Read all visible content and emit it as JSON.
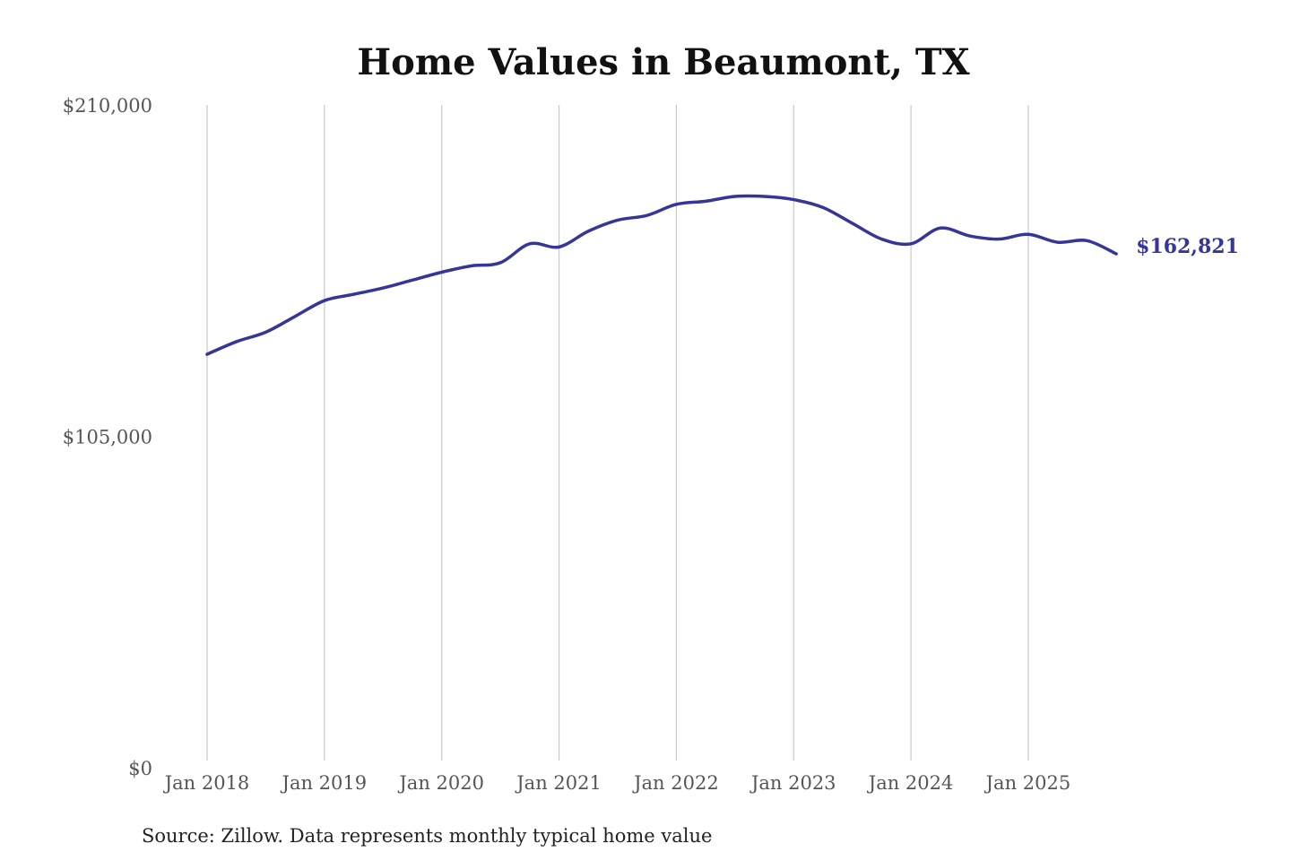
{
  "chart_data": {
    "type": "line",
    "title": "Home Values in Beaumont, TX",
    "xlabel": "",
    "ylabel": "",
    "ylim": [
      0,
      210000
    ],
    "y_ticks": [
      {
        "value": 0,
        "label": "$0"
      },
      {
        "value": 105000,
        "label": "$105,000"
      },
      {
        "value": 210000,
        "label": "$210,000"
      }
    ],
    "x_ticks": [
      {
        "value": "2018-01",
        "label": "Jan 2018"
      },
      {
        "value": "2019-01",
        "label": "Jan 2019"
      },
      {
        "value": "2020-01",
        "label": "Jan 2020"
      },
      {
        "value": "2021-01",
        "label": "Jan 2021"
      },
      {
        "value": "2022-01",
        "label": "Jan 2022"
      },
      {
        "value": "2023-01",
        "label": "Jan 2023"
      },
      {
        "value": "2024-01",
        "label": "Jan 2024"
      },
      {
        "value": "2025-01",
        "label": "Jan 2025"
      }
    ],
    "grid": {
      "vertical": true,
      "horizontal": false
    },
    "legend": "none",
    "series": [
      {
        "color": "#363699",
        "x": [
          "2018-01",
          "2018-04",
          "2018-07",
          "2018-10",
          "2019-01",
          "2019-04",
          "2019-07",
          "2019-10",
          "2020-01",
          "2020-04",
          "2020-07",
          "2020-10",
          "2021-01",
          "2021-04",
          "2021-07",
          "2021-10",
          "2022-01",
          "2022-04",
          "2022-07",
          "2022-10",
          "2023-01",
          "2023-04",
          "2023-07",
          "2023-10",
          "2024-01",
          "2024-04",
          "2024-07",
          "2024-10",
          "2025-01",
          "2025-04",
          "2025-07",
          "2025-10"
        ],
        "y": [
          131000,
          135000,
          138000,
          143000,
          148000,
          150000,
          152000,
          154500,
          157000,
          159000,
          160000,
          166000,
          165000,
          170000,
          173500,
          175000,
          178500,
          179500,
          181000,
          181000,
          180000,
          177500,
          172500,
          167500,
          166000,
          171000,
          168500,
          167500,
          169000,
          166500,
          167000,
          162821
        ]
      }
    ],
    "end_label": "$162,821"
  },
  "footer": {
    "source": "Source: Zillow. Data represents monthly typical home value"
  }
}
